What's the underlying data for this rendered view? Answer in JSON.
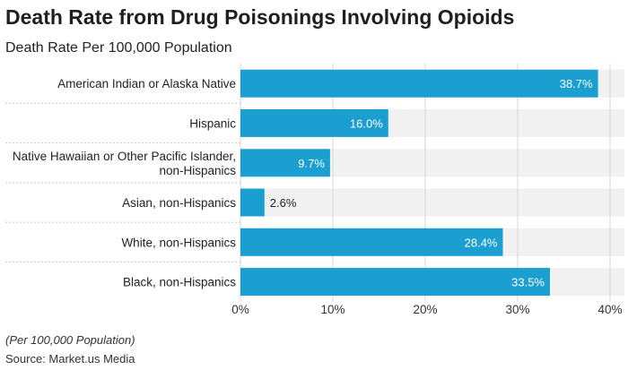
{
  "title": "Death Rate from Drug Poisonings Involving Opioids",
  "subtitle": "Death Rate Per 100,000 Population",
  "footnote": "(Per 100,000 Population)",
  "source": "Source: Market.us Media",
  "colors": {
    "bar": "#1a9fd0",
    "track": "#f1f1f1",
    "grid": "#d6d6d6",
    "separator": "#cccccc",
    "label_inside": "#ffffff",
    "label_outside": "#222222"
  },
  "chart_data": {
    "type": "bar",
    "orientation": "horizontal",
    "title": "Death Rate from Drug Poisonings Involving Opioids",
    "subtitle": "Death Rate Per 100,000 Population",
    "categories": [
      [
        "American Indian or Alaska Native"
      ],
      [
        "Hispanic"
      ],
      [
        "Native Hawaiian or Other Pacific Islander,",
        "non-Hispanics"
      ],
      [
        "Asian, non-Hispanics"
      ],
      [
        "White, non-Hispanics"
      ],
      [
        "Black, non-Hispanics"
      ]
    ],
    "values": [
      38.7,
      16.0,
      9.7,
      2.6,
      28.4,
      33.5
    ],
    "value_labels": [
      "38.7%",
      "16.0%",
      "9.7%",
      "2.6%",
      "28.4%",
      "33.5%"
    ],
    "xlim": [
      0,
      40
    ],
    "xticks": [
      0,
      10,
      20,
      30,
      40
    ],
    "xtick_labels": [
      "0%",
      "10%",
      "20%",
      "30%",
      "40%"
    ],
    "grid": true,
    "legend": "none"
  }
}
